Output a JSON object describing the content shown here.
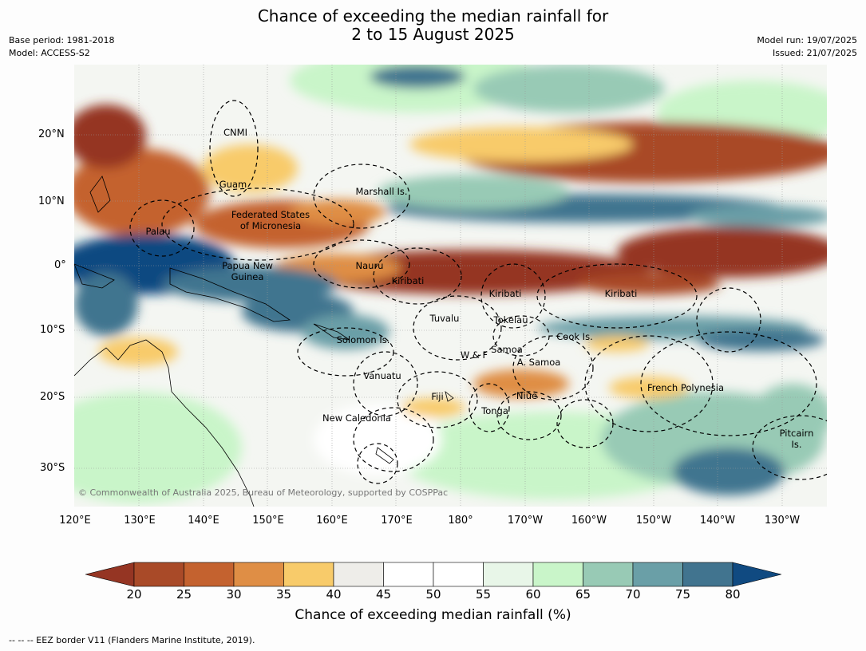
{
  "header": {
    "title_line1": "Chance of exceeding the median rainfall for",
    "title_line2": "2 to 15 August 2025",
    "base_period": "Base period: 1981-2018",
    "model": "Model: ACCESS-S2",
    "model_run": "Model run: 19/07/2025",
    "issued": "Issued: 21/07/2025"
  },
  "map": {
    "copyright": "© Commonwealth of Australia 2025, Bureau of Meteorology, supported by COSPPac",
    "lat_ticks": [
      "20°N",
      "10°N",
      "0°",
      "10°S",
      "20°S",
      "30°S"
    ],
    "lon_ticks": [
      "120°E",
      "130°E",
      "140°E",
      "150°E",
      "160°E",
      "170°E",
      "180°",
      "170°W",
      "160°W",
      "150°W",
      "140°W",
      "130°W"
    ],
    "regions": [
      {
        "name": "cnmi",
        "label": "CNMI"
      },
      {
        "name": "guam",
        "label": "Guam"
      },
      {
        "name": "marshall-is",
        "label": "Marshall Is."
      },
      {
        "name": "palau",
        "label": "Palau"
      },
      {
        "name": "fsm",
        "label": "Federated States\nof Micronesia"
      },
      {
        "name": "png",
        "label": "Papua New\nGuinea"
      },
      {
        "name": "nauru",
        "label": "Nauru"
      },
      {
        "name": "kiribati-west",
        "label": "Kiribati"
      },
      {
        "name": "kiribati-central",
        "label": "Kiribati"
      },
      {
        "name": "kiribati-east",
        "label": "Kiribati"
      },
      {
        "name": "tuvalu",
        "label": "Tuvalu"
      },
      {
        "name": "tokelau",
        "label": "Tokelau"
      },
      {
        "name": "cook-is",
        "label": "Cook Is."
      },
      {
        "name": "solomon-is",
        "label": "Solomon Is."
      },
      {
        "name": "samoa",
        "label": "Samoa"
      },
      {
        "name": "wallis-futuna",
        "label": "W & F"
      },
      {
        "name": "american-samoa",
        "label": "A. Samoa"
      },
      {
        "name": "vanuatu",
        "label": "Vanuatu"
      },
      {
        "name": "french-polynesia",
        "label": "French Polynesia"
      },
      {
        "name": "fiji",
        "label": "Fiji"
      },
      {
        "name": "niue",
        "label": "Niue"
      },
      {
        "name": "tonga",
        "label": "Tonga"
      },
      {
        "name": "new-caledonia",
        "label": "New Caledonia"
      },
      {
        "name": "pitcairn-is",
        "label": "Pitcairn\nIs."
      }
    ]
  },
  "colorbar": {
    "title": "Chance of exceeding median rainfall (%)",
    "labels": [
      "20",
      "25",
      "30",
      "35",
      "40",
      "45",
      "50",
      "55",
      "60",
      "65",
      "70",
      "75",
      "80"
    ],
    "colors": [
      "#a94a28",
      "#c4622f",
      "#df8e45",
      "#f8cb6a",
      "#eeede9",
      "#ffffff",
      "#ffffff",
      "#e8f6e8",
      "#c9f5c9",
      "#98cab5",
      "#6a9fa7",
      "#41748f"
    ],
    "low_extend_color": "#953523",
    "high_extend_color": "#104a81"
  },
  "footnote": "--  --  -- EEZ border V11 (Flanders Marine Institute, 2019)."
}
